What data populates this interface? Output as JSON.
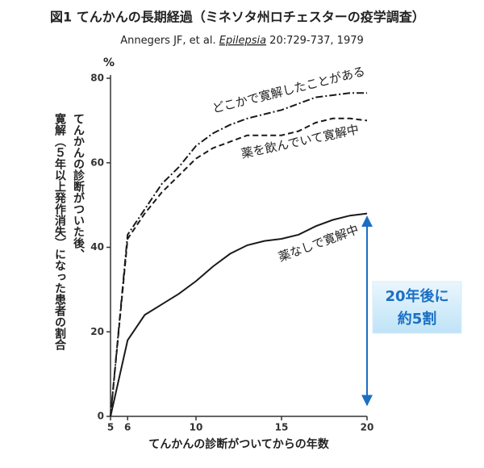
{
  "chart_data": {
    "type": "line",
    "title": "図1 てんかんの長期経過（ミネソタ州ロチェスターの疫学調査）",
    "subtitle": [
      "Annegers JF, et al. ",
      "Epilepsia",
      " 20:729-737, 1979"
    ],
    "x_label": "てんかんの診断がついてからの年数",
    "y_label": [
      "てんかんの診断がついた後、",
      "寛解（５年以上発作消失）になった患者の割合"
    ],
    "y_unit": "%",
    "x": [
      5,
      6,
      7,
      8,
      9,
      10,
      11,
      12,
      13,
      14,
      15,
      16,
      17,
      18,
      19,
      20
    ],
    "series": [
      {
        "name": "薬なしで寛解中",
        "color": "#1a1a1a",
        "style": "solid",
        "values": [
          0,
          18,
          24,
          26.5,
          29,
          32,
          35.5,
          38.5,
          40.5,
          41.5,
          42,
          43,
          45,
          46.5,
          47.5,
          48
        ]
      },
      {
        "name": "薬を飲んでいて寛解中",
        "color": "#1a1a1a",
        "style": "dashed",
        "values": [
          0,
          42,
          48,
          53,
          57,
          61,
          63.5,
          65,
          66.5,
          66.5,
          66.5,
          67.5,
          69.5,
          70.5,
          70.5,
          70
        ]
      },
      {
        "name": "どこかで寛解したことがある",
        "color": "#1a1a1a",
        "style": "dashdot",
        "values": [
          0,
          43,
          49,
          55,
          59,
          64,
          67,
          69,
          70.5,
          71.5,
          72.5,
          74,
          75.5,
          76,
          76.5,
          76.5
        ]
      }
    ],
    "xlim": [
      5,
      20
    ],
    "xticks": [
      5,
      6,
      10,
      15,
      20
    ],
    "ylim": [
      0,
      80
    ],
    "yticks": [
      0,
      20,
      40,
      60,
      80
    ],
    "annotation": [
      "20年後に",
      "約5割"
    ],
    "annotation_color": "#1a6fc4"
  }
}
